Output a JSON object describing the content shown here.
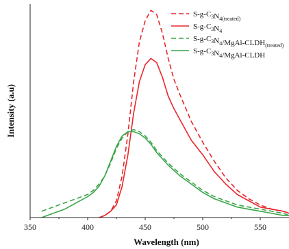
{
  "chart_data": {
    "type": "line",
    "title": "",
    "xlabel": "Wavelength (nm)",
    "ylabel": "Intensity (a.u)",
    "xlim": [
      350,
      575
    ],
    "ylim": [
      0,
      100
    ],
    "xticks": [
      350,
      400,
      450,
      500,
      550
    ],
    "yticks": [],
    "grid": false,
    "legend_position": "top-right",
    "series": [
      {
        "name": "S-g-C3N4(treated)",
        "name_parts": {
          "base": "S-g-C",
          "sub1": "3",
          "mid": "N",
          "sub2": "4(treated)",
          "tail": ""
        },
        "color": "#e8262c",
        "style": "dashed",
        "x": [
          410,
          415,
          420,
          425,
          430,
          435,
          440,
          445,
          450,
          455,
          460,
          465,
          470,
          475,
          480,
          490,
          500,
          510,
          520,
          530,
          540,
          550,
          560,
          570,
          575
        ],
        "y": [
          0,
          1,
          3,
          8,
          20,
          40,
          65,
          84,
          94,
          99,
          97,
          88,
          76,
          66,
          59,
          46,
          36,
          27,
          19,
          13,
          9,
          6,
          4,
          3,
          2
        ]
      },
      {
        "name": "S-g-C3N4",
        "name_parts": {
          "base": "S-g-C",
          "sub1": "3",
          "mid": "N",
          "sub2": "4",
          "tail": ""
        },
        "color": "#e8262c",
        "style": "solid",
        "x": [
          410,
          415,
          420,
          425,
          430,
          435,
          440,
          445,
          450,
          455,
          460,
          465,
          470,
          475,
          480,
          490,
          500,
          510,
          520,
          530,
          540,
          550,
          560,
          570,
          575
        ],
        "y": [
          0,
          1,
          3,
          6,
          15,
          30,
          50,
          65,
          73,
          76,
          74,
          67,
          58,
          52,
          47,
          37,
          30,
          22,
          16,
          11,
          8,
          5,
          4,
          3,
          2
        ]
      },
      {
        "name": "S-g-C3N4/MgAl-CLDH(treated)",
        "name_parts": {
          "base": "S-g-C",
          "sub1": "3",
          "mid": "N",
          "sub2": "4",
          "tail": "/MgAl-CLDH",
          "sub3": "(treated)"
        },
        "color": "#3aa64a",
        "style": "dashed",
        "x": [
          360,
          370,
          380,
          390,
          400,
          405,
          410,
          415,
          420,
          425,
          430,
          435,
          440,
          445,
          450,
          455,
          460,
          470,
          480,
          490,
          500,
          510,
          520,
          530,
          540,
          550,
          560,
          570,
          575
        ],
        "y": [
          3,
          5,
          7,
          9,
          11,
          13,
          16,
          20,
          26,
          33,
          38,
          41,
          42,
          41,
          39,
          36,
          32,
          26,
          21,
          17,
          13,
          10,
          8,
          6,
          5,
          4,
          3,
          2,
          1
        ]
      },
      {
        "name": "S-g-C3N4/MgAl-CLDH",
        "name_parts": {
          "base": "S-g-C",
          "sub1": "3",
          "mid": "N",
          "sub2": "4",
          "tail": "/MgAl-CLDH"
        },
        "color": "#3aa64a",
        "style": "solid",
        "x": [
          360,
          370,
          380,
          390,
          400,
          405,
          410,
          415,
          420,
          425,
          430,
          435,
          440,
          445,
          450,
          455,
          460,
          470,
          480,
          490,
          500,
          510,
          520,
          530,
          540,
          550,
          560,
          570,
          575
        ],
        "y": [
          0,
          2,
          4,
          7,
          10,
          12,
          15,
          20,
          27,
          34,
          39,
          41,
          41,
          40,
          38,
          35,
          31,
          25,
          20,
          16,
          12,
          9,
          7,
          5,
          4,
          3,
          2,
          1,
          1
        ]
      }
    ]
  }
}
